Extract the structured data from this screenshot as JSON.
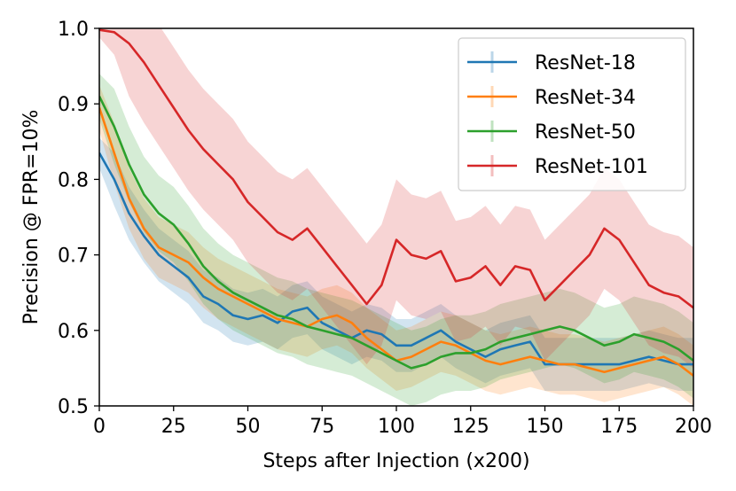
{
  "chart_data": {
    "type": "line",
    "xlabel": "Steps after Injection (x200)",
    "ylabel": "Precision @ FPR=10%",
    "xlim": [
      0,
      200
    ],
    "ylim": [
      0.5,
      1.0
    ],
    "x_ticks": [
      0,
      25,
      50,
      75,
      100,
      125,
      150,
      175,
      200
    ],
    "y_ticks": [
      0.5,
      0.6,
      0.7,
      0.8,
      0.9,
      1.0
    ],
    "x_tick_labels": [
      "0",
      "25",
      "50",
      "75",
      "100",
      "125",
      "150",
      "175",
      "200"
    ],
    "y_tick_labels": [
      "0.5",
      "0.6",
      "0.7",
      "0.8",
      "0.9",
      "1.0"
    ],
    "grid": false,
    "legend_position": "top-right",
    "series": [
      {
        "name": "ResNet-18",
        "color": "#1f77b4",
        "x": [
          0,
          5,
          10,
          15,
          20,
          25,
          30,
          35,
          40,
          45,
          50,
          55,
          60,
          65,
          70,
          75,
          80,
          85,
          90,
          95,
          100,
          105,
          110,
          115,
          120,
          125,
          130,
          135,
          140,
          145,
          150,
          155,
          160,
          165,
          170,
          175,
          180,
          185,
          190,
          195,
          200
        ],
        "y": [
          0.835,
          0.8,
          0.755,
          0.725,
          0.7,
          0.685,
          0.67,
          0.645,
          0.635,
          0.62,
          0.615,
          0.62,
          0.61,
          0.625,
          0.63,
          0.61,
          0.6,
          0.59,
          0.6,
          0.595,
          0.58,
          0.58,
          0.59,
          0.6,
          0.585,
          0.575,
          0.565,
          0.575,
          0.58,
          0.585,
          0.555,
          0.555,
          0.555,
          0.555,
          0.555,
          0.555,
          0.56,
          0.565,
          0.56,
          0.555,
          0.555
        ],
        "err": [
          0.02,
          0.035,
          0.035,
          0.035,
          0.035,
          0.035,
          0.035,
          0.035,
          0.035,
          0.035,
          0.035,
          0.035,
          0.035,
          0.035,
          0.035,
          0.035,
          0.035,
          0.035,
          0.035,
          0.035,
          0.035,
          0.035,
          0.035,
          0.035,
          0.035,
          0.035,
          0.035,
          0.035,
          0.035,
          0.035,
          0.035,
          0.035,
          0.035,
          0.035,
          0.035,
          0.035,
          0.035,
          0.035,
          0.035,
          0.035,
          0.035
        ]
      },
      {
        "name": "ResNet-34",
        "color": "#ff7f0e",
        "x": [
          0,
          5,
          10,
          15,
          20,
          25,
          30,
          35,
          40,
          45,
          50,
          55,
          60,
          65,
          70,
          75,
          80,
          85,
          90,
          95,
          100,
          105,
          110,
          115,
          120,
          125,
          130,
          135,
          140,
          145,
          150,
          155,
          160,
          165,
          170,
          175,
          180,
          185,
          190,
          195,
          200
        ],
        "y": [
          0.895,
          0.835,
          0.775,
          0.735,
          0.71,
          0.7,
          0.69,
          0.67,
          0.655,
          0.645,
          0.635,
          0.625,
          0.615,
          0.61,
          0.605,
          0.615,
          0.62,
          0.61,
          0.59,
          0.575,
          0.56,
          0.565,
          0.575,
          0.585,
          0.58,
          0.57,
          0.56,
          0.555,
          0.56,
          0.565,
          0.56,
          0.555,
          0.555,
          0.55,
          0.545,
          0.55,
          0.555,
          0.56,
          0.565,
          0.555,
          0.54
        ],
        "err": [
          0.03,
          0.04,
          0.04,
          0.04,
          0.04,
          0.04,
          0.04,
          0.04,
          0.04,
          0.04,
          0.04,
          0.04,
          0.04,
          0.04,
          0.04,
          0.04,
          0.04,
          0.04,
          0.04,
          0.04,
          0.04,
          0.04,
          0.04,
          0.04,
          0.04,
          0.04,
          0.04,
          0.04,
          0.04,
          0.04,
          0.04,
          0.04,
          0.04,
          0.04,
          0.04,
          0.04,
          0.04,
          0.04,
          0.04,
          0.04,
          0.04
        ]
      },
      {
        "name": "ResNet-50",
        "color": "#2ca02c",
        "x": [
          0,
          5,
          10,
          15,
          20,
          25,
          30,
          35,
          40,
          45,
          50,
          55,
          60,
          65,
          70,
          75,
          80,
          85,
          90,
          95,
          100,
          105,
          110,
          115,
          120,
          125,
          130,
          135,
          140,
          145,
          150,
          155,
          160,
          165,
          170,
          175,
          180,
          185,
          190,
          195,
          200
        ],
        "y": [
          0.91,
          0.87,
          0.82,
          0.78,
          0.755,
          0.74,
          0.715,
          0.685,
          0.665,
          0.65,
          0.64,
          0.63,
          0.62,
          0.615,
          0.605,
          0.6,
          0.595,
          0.59,
          0.58,
          0.57,
          0.56,
          0.55,
          0.555,
          0.565,
          0.57,
          0.57,
          0.575,
          0.585,
          0.59,
          0.595,
          0.6,
          0.605,
          0.6,
          0.59,
          0.58,
          0.585,
          0.595,
          0.59,
          0.585,
          0.575,
          0.56
        ],
        "err": [
          0.03,
          0.05,
          0.05,
          0.05,
          0.05,
          0.05,
          0.05,
          0.05,
          0.05,
          0.05,
          0.05,
          0.05,
          0.05,
          0.05,
          0.05,
          0.05,
          0.05,
          0.05,
          0.05,
          0.05,
          0.05,
          0.05,
          0.05,
          0.05,
          0.05,
          0.05,
          0.05,
          0.05,
          0.05,
          0.05,
          0.05,
          0.05,
          0.05,
          0.05,
          0.05,
          0.05,
          0.05,
          0.05,
          0.05,
          0.05,
          0.05
        ]
      },
      {
        "name": "ResNet-101",
        "color": "#d62728",
        "x": [
          0,
          5,
          10,
          15,
          20,
          25,
          30,
          35,
          40,
          45,
          50,
          55,
          60,
          65,
          70,
          75,
          80,
          85,
          90,
          95,
          100,
          105,
          110,
          115,
          120,
          125,
          130,
          135,
          140,
          145,
          150,
          155,
          160,
          165,
          170,
          175,
          180,
          185,
          190,
          195,
          200
        ],
        "y": [
          0.998,
          0.995,
          0.98,
          0.955,
          0.925,
          0.895,
          0.865,
          0.84,
          0.82,
          0.8,
          0.77,
          0.75,
          0.73,
          0.72,
          0.735,
          0.71,
          0.685,
          0.66,
          0.635,
          0.66,
          0.72,
          0.7,
          0.695,
          0.705,
          0.665,
          0.67,
          0.685,
          0.66,
          0.685,
          0.68,
          0.64,
          0.66,
          0.68,
          0.7,
          0.735,
          0.72,
          0.69,
          0.66,
          0.65,
          0.645,
          0.63
        ],
        "err": [
          0.01,
          0.03,
          0.07,
          0.08,
          0.08,
          0.08,
          0.08,
          0.08,
          0.08,
          0.08,
          0.08,
          0.08,
          0.08,
          0.08,
          0.08,
          0.08,
          0.08,
          0.08,
          0.08,
          0.08,
          0.08,
          0.08,
          0.08,
          0.08,
          0.08,
          0.08,
          0.08,
          0.08,
          0.08,
          0.08,
          0.08,
          0.08,
          0.08,
          0.08,
          0.08,
          0.08,
          0.08,
          0.08,
          0.08,
          0.08,
          0.08
        ]
      }
    ]
  }
}
